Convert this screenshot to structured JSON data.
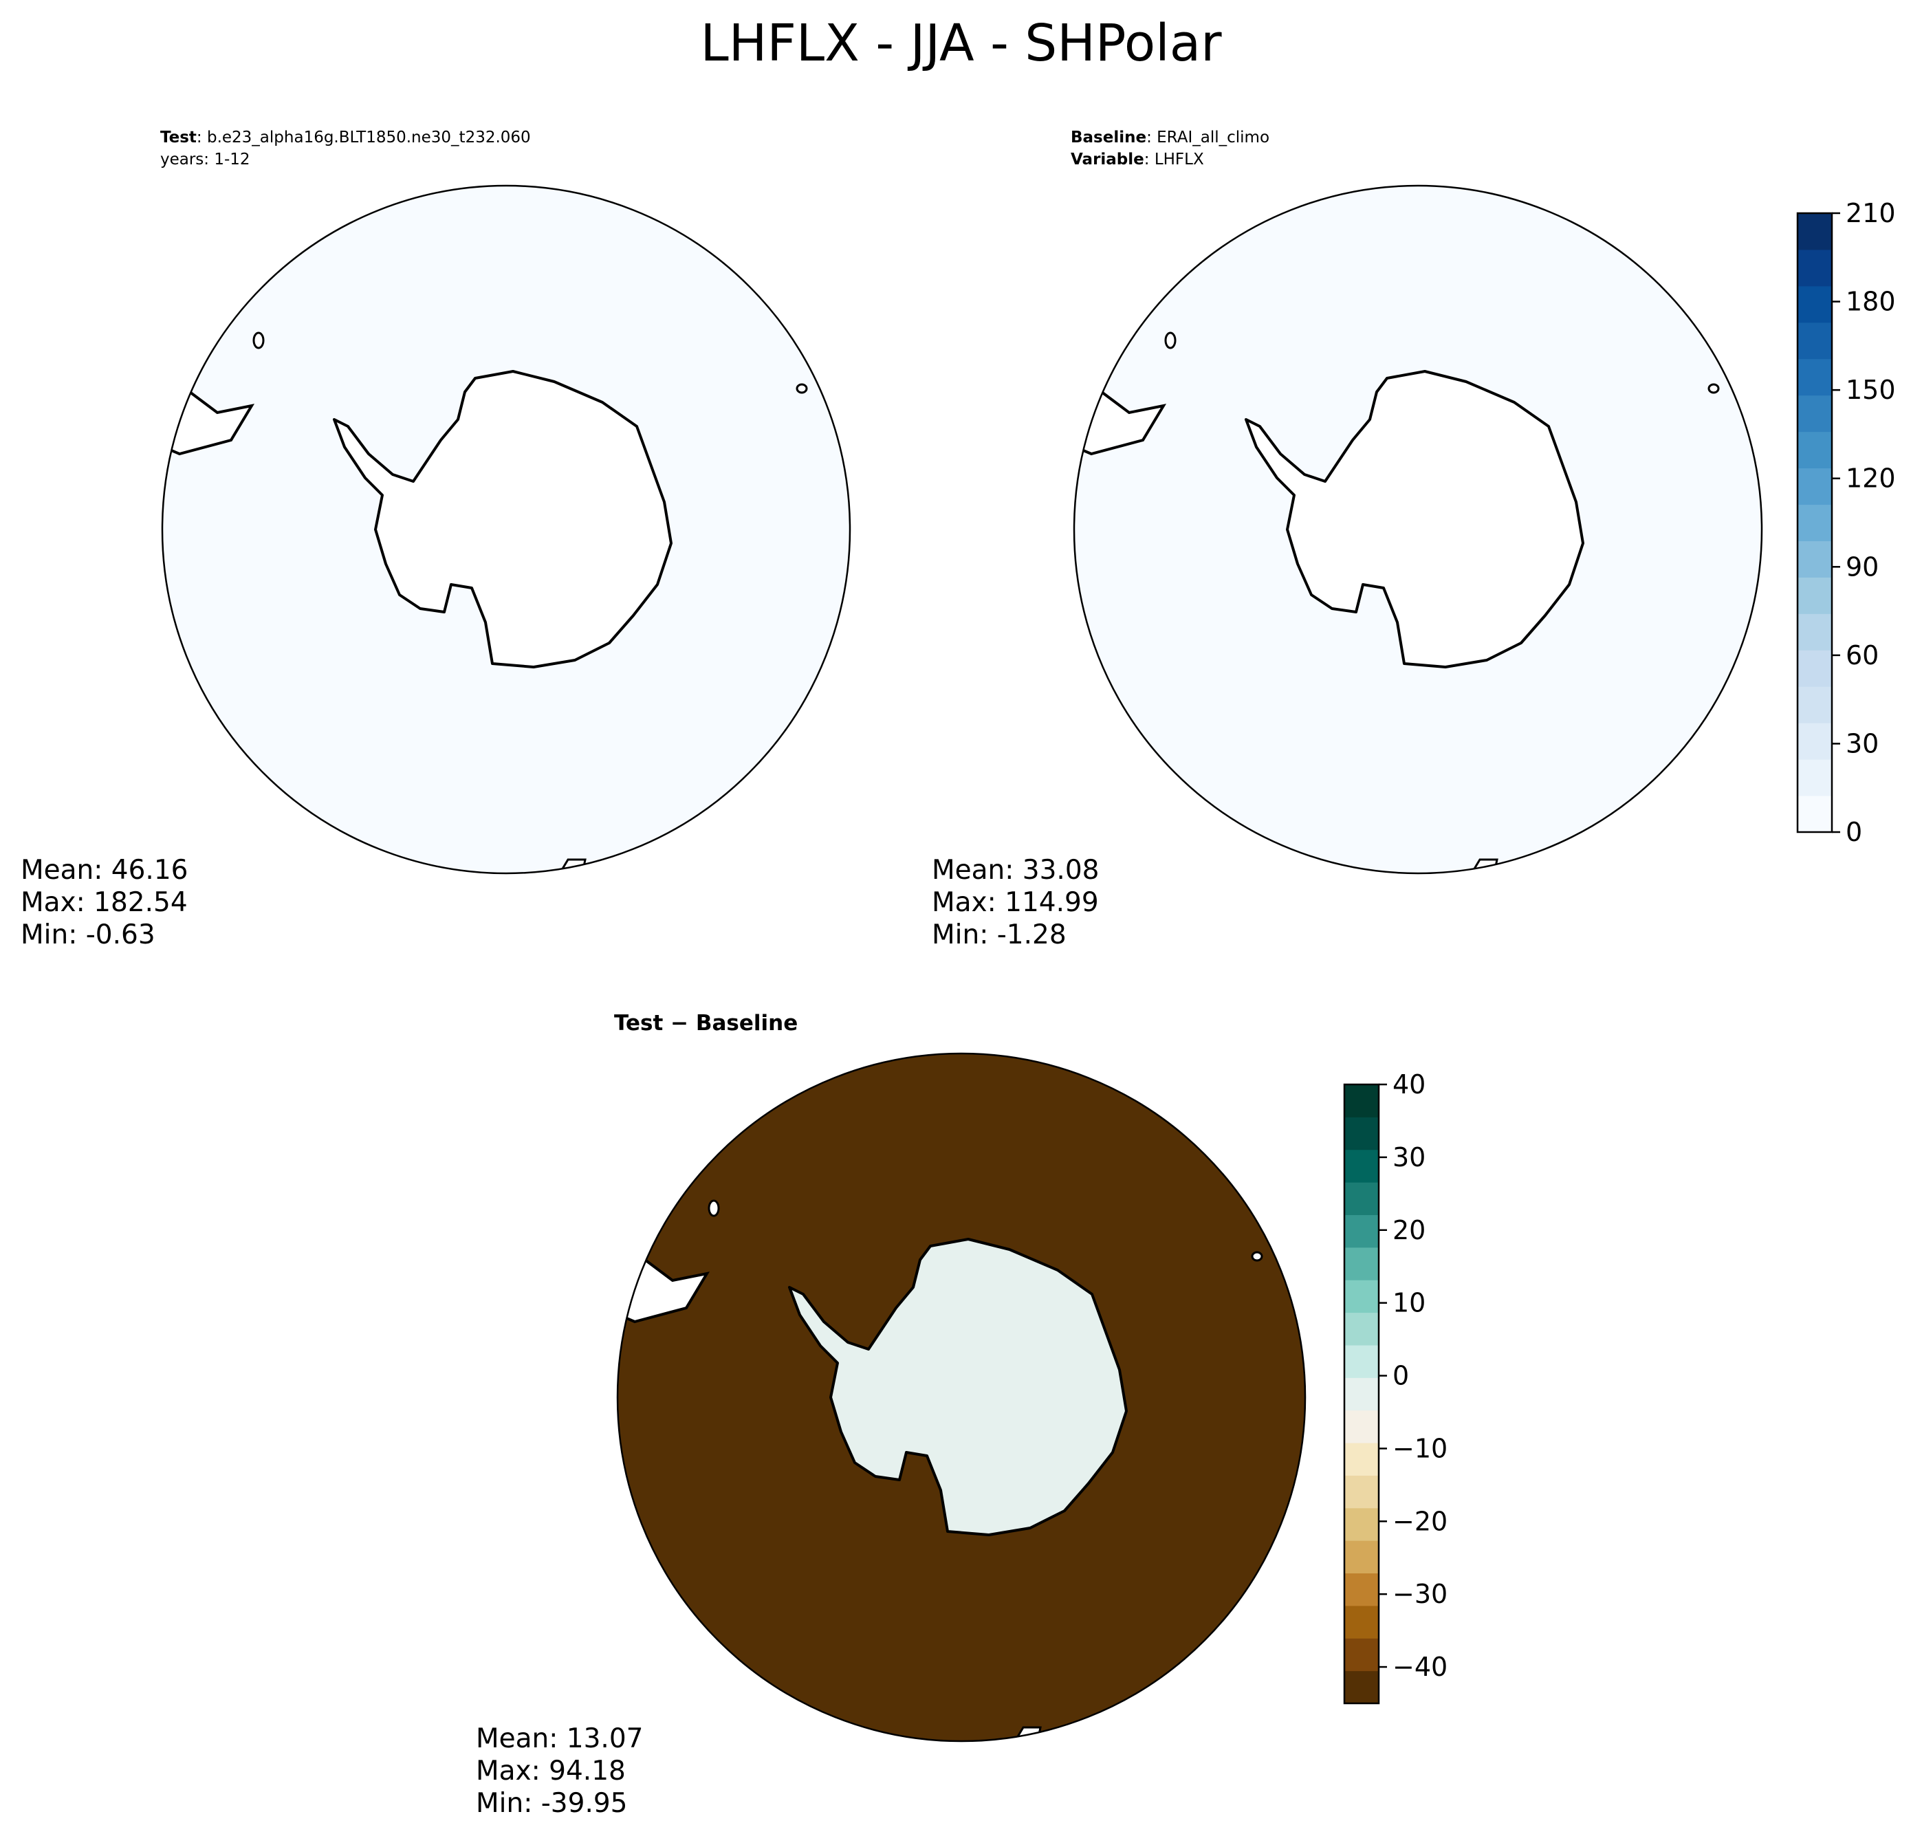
{
  "title": "LHFLX - JJA - SHPolar",
  "panels": {
    "test": {
      "header_line1_bold": "Test",
      "header_line1_text": ": b.e23_alpha16g.BLT1850.ne30_t232.060",
      "header_line2": "years: 1-12",
      "stats": {
        "mean": "Mean: 46.16",
        "max": "Max: 182.54",
        "min": "Min: -0.63"
      }
    },
    "baseline": {
      "header_line1_bold": "Baseline",
      "header_line1_text": ": ERAI_all_climo",
      "header_line2_bold": "Variable",
      "header_line2_text": ": LHFLX",
      "stats": {
        "mean": "Mean: 33.08",
        "max": "Max: 114.99",
        "min": "Min: -1.28"
      }
    },
    "diff": {
      "title": "Test − Baseline",
      "stats": {
        "mean": "Mean: 13.07",
        "max": "Max: 94.18",
        "min": "Min: -39.95"
      }
    }
  },
  "chart_data": [
    {
      "type": "heatmap",
      "name": "test",
      "projection": "south-polar-stereographic",
      "colormap": "Blues",
      "colorbar": {
        "min": 0,
        "max": 210,
        "ticks": [
          "0",
          "30",
          "60",
          "90",
          "120",
          "150",
          "180",
          "210"
        ],
        "levels": 21
      },
      "field_description_values": {
        "mean": 46.16,
        "max": 182.54,
        "min": -0.63
      }
    },
    {
      "type": "heatmap",
      "name": "baseline",
      "projection": "south-polar-stereographic",
      "colormap": "Blues",
      "colorbar": {
        "min": 0,
        "max": 210,
        "ticks": [
          "0",
          "30",
          "60",
          "90",
          "120",
          "150",
          "180",
          "210"
        ],
        "levels": 21
      },
      "field_description_values": {
        "mean": 33.08,
        "max": 114.99,
        "min": -1.28
      }
    },
    {
      "type": "heatmap",
      "name": "diff",
      "projection": "south-polar-stereographic",
      "colormap": "BrBG",
      "colorbar": {
        "min": -45,
        "max": 40,
        "ticks": [
          "−40",
          "−30",
          "−20",
          "−10",
          "0",
          "10",
          "20",
          "30",
          "40"
        ],
        "levels": 17
      },
      "field_description_values": {
        "mean": 13.07,
        "max": 94.18,
        "min": -39.95
      }
    }
  ],
  "colors": {
    "blues": [
      "#f7fbff",
      "#eaf3fb",
      "#deebf7",
      "#d0e2f2",
      "#c6dbef",
      "#b5d4e9",
      "#9ecae1",
      "#85bcdc",
      "#6baed6",
      "#559fcf",
      "#4292c6",
      "#3282be",
      "#2171b5",
      "#1561a9",
      "#08519c",
      "#08408a",
      "#08306b"
    ],
    "brbg": [
      "#543005",
      "#7f470b",
      "#a0630f",
      "#bf812d",
      "#d4a859",
      "#dfc27d",
      "#ecd7a4",
      "#f6e8c3",
      "#f5f0e6",
      "#e6f1ee",
      "#c7eae5",
      "#a3dad1",
      "#80cdc1",
      "#5ab4a9",
      "#35978f",
      "#1b7d74",
      "#01665e",
      "#004c44",
      "#003c30"
    ]
  }
}
